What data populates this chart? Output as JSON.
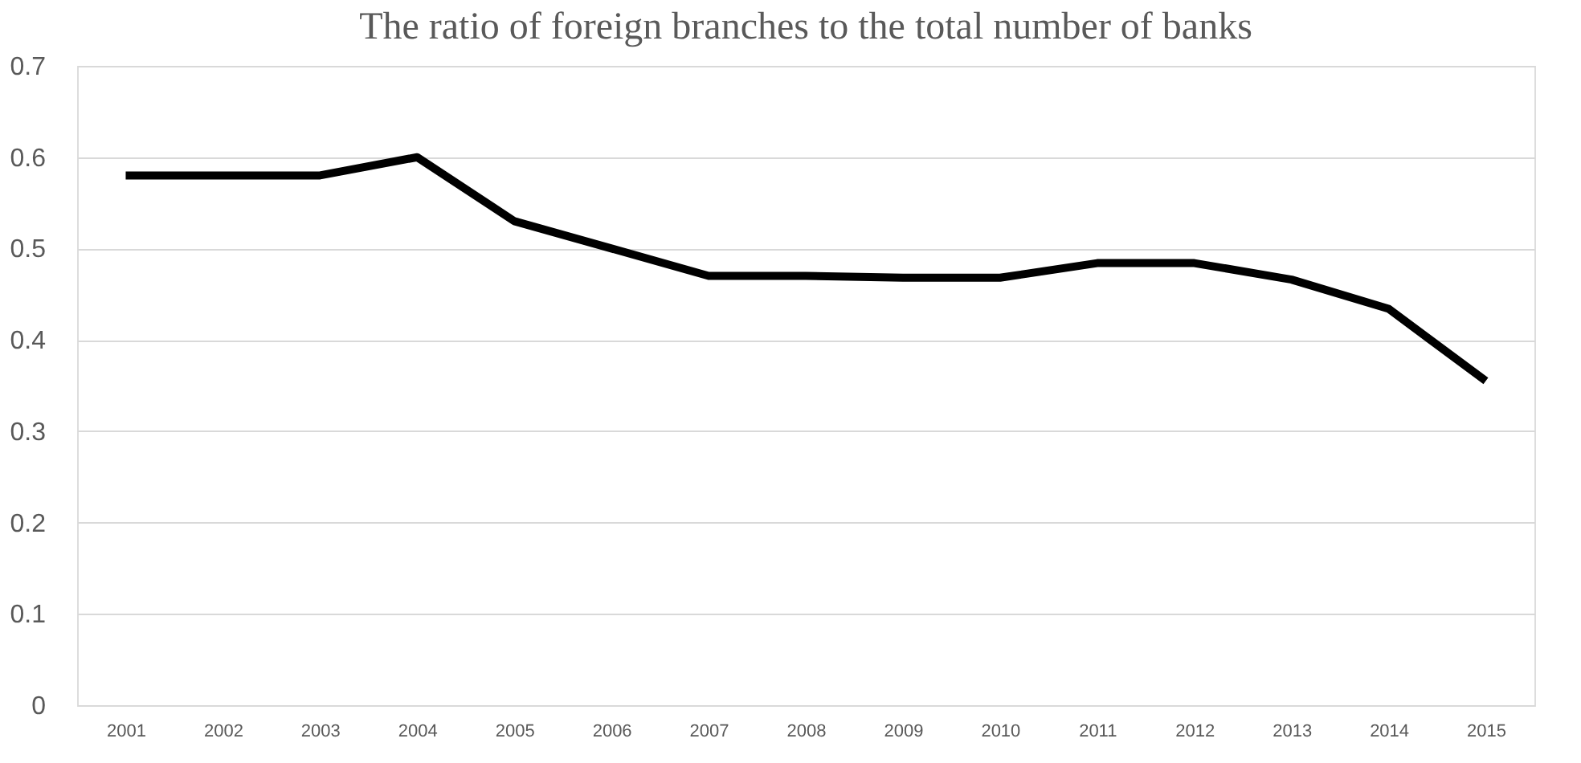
{
  "chart_data": {
    "type": "line",
    "title": "The ratio of foreign branches to the total number of banks",
    "categories": [
      "2001",
      "2002",
      "2003",
      "2004",
      "2005",
      "2006",
      "2007",
      "2008",
      "2009",
      "2010",
      "2011",
      "2012",
      "2013",
      "2014",
      "2015"
    ],
    "series": [
      {
        "color": "#000000",
        "values": [
          0.58,
          0.58,
          0.58,
          0.6,
          0.53,
          0.5,
          0.47,
          0.47,
          0.468,
          0.468,
          0.484,
          0.484,
          0.466,
          0.434,
          0.355
        ]
      }
    ],
    "ylim": [
      0,
      0.7
    ],
    "yticks": [
      0,
      0.1,
      0.2,
      0.3,
      0.4,
      0.5,
      0.6,
      0.7
    ],
    "grid": "y",
    "marker": "none",
    "line_style": "solid"
  }
}
